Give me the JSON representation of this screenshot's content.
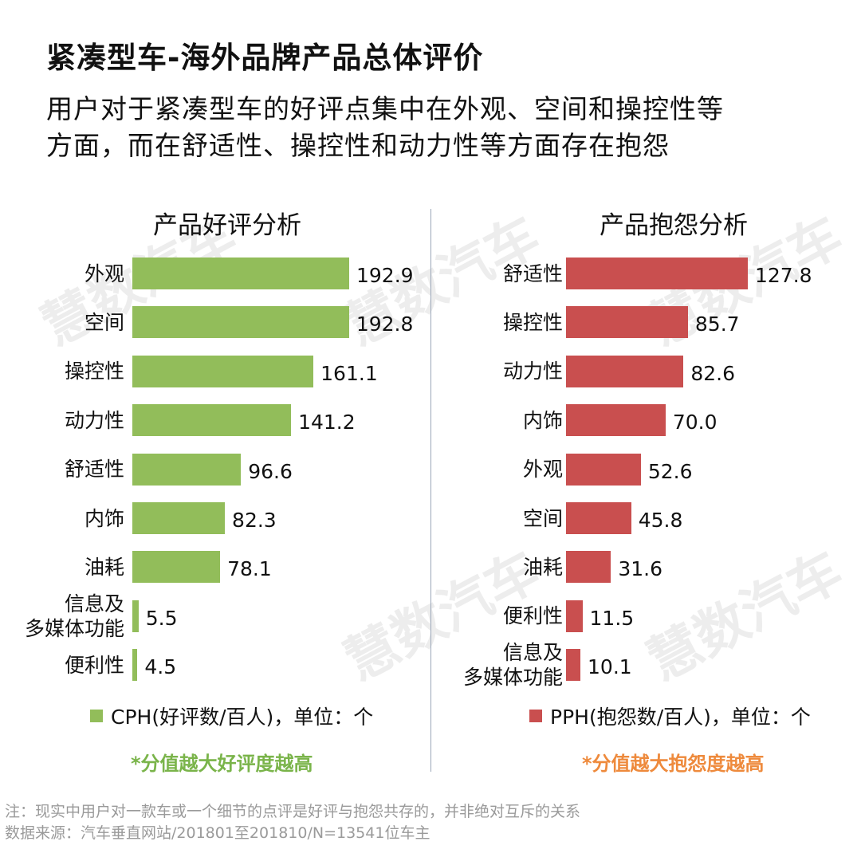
{
  "title": "紧凑型车-海外品牌产品总体评价",
  "subtitle_line1": "用户对于紧凑型车的好评点集中在外观、空间和操控性等",
  "subtitle_line2": "方面，而在舒适性、操控性和动力性等方面存在抱怨",
  "watermark": "慧数汽车",
  "colors": {
    "good": "#92bd5a",
    "bad": "#c94f4f",
    "good_note": "#7ab44a",
    "bad_note": "#ee8a3c"
  },
  "chart_data": [
    {
      "type": "bar",
      "orientation": "horizontal",
      "title": "产品好评分析",
      "categories": [
        "外观",
        "空间",
        "操控性",
        "动力性",
        "舒适性",
        "内饰",
        "油耗",
        "信息及\n多媒体功能",
        "便利性"
      ],
      "values": [
        192.9,
        192.8,
        161.1,
        141.2,
        96.6,
        82.3,
        78.1,
        5.5,
        4.5
      ],
      "value_labels": [
        "192.9",
        "192.8",
        "161.1",
        "141.2",
        "96.6",
        "82.3",
        "78.1",
        "5.5",
        "4.5"
      ],
      "legend": "CPH(好评数/百人)，单位：个",
      "note": "*分值越大好评度越高",
      "xlim": [
        0,
        192.9
      ]
    },
    {
      "type": "bar",
      "orientation": "horizontal",
      "title": "产品抱怨分析",
      "categories": [
        "舒适性",
        "操控性",
        "动力性",
        "内饰",
        "外观",
        "空间",
        "油耗",
        "便利性",
        "信息及\n多媒体功能"
      ],
      "values": [
        127.8,
        85.7,
        82.6,
        70.0,
        52.6,
        45.8,
        31.6,
        11.5,
        10.1
      ],
      "value_labels": [
        "127.8",
        "85.7",
        "82.6",
        "70.0",
        "52.6",
        "45.8",
        "31.6",
        "11.5",
        "10.1"
      ],
      "legend": "PPH(抱怨数/百人)，单位：个",
      "note": "*分值越大抱怨度越高",
      "xlim": [
        0,
        127.8
      ]
    }
  ],
  "footer": {
    "line1": "注：现实中用户对一款车或一个细节的点评是好评与抱怨共存的，并非绝对互斥的关系",
    "line2": "数据来源：汽车垂直网站/201801至201810/N=13541位车主"
  }
}
